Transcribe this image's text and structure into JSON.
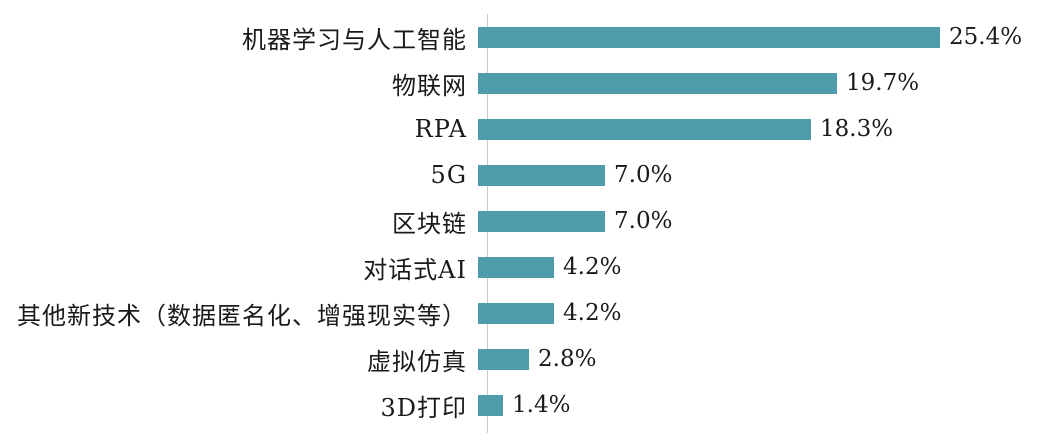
{
  "chart_data": {
    "type": "bar",
    "orientation": "horizontal",
    "title": "",
    "xlabel": "",
    "ylabel": "",
    "categories": [
      "机器学习与人工智能",
      "物联网",
      "RPA",
      "5G",
      "区块链",
      "对话式AI",
      "其他新技术（数据匿名化、增强现实等）",
      "虚拟仿真",
      "3D打印"
    ],
    "values": [
      25.4,
      19.7,
      18.3,
      7.0,
      7.0,
      4.2,
      4.2,
      2.8,
      1.4
    ],
    "value_labels": [
      "25.4%",
      "19.7%",
      "18.3%",
      "7.0%",
      "7.0%",
      "4.2%",
      "4.2%",
      "2.8%",
      "1.4%"
    ],
    "xlim": [
      0,
      28
    ],
    "grid": false,
    "legend": false,
    "bar_color": "#4f9bab",
    "axis_color": "#c9c9c9"
  }
}
